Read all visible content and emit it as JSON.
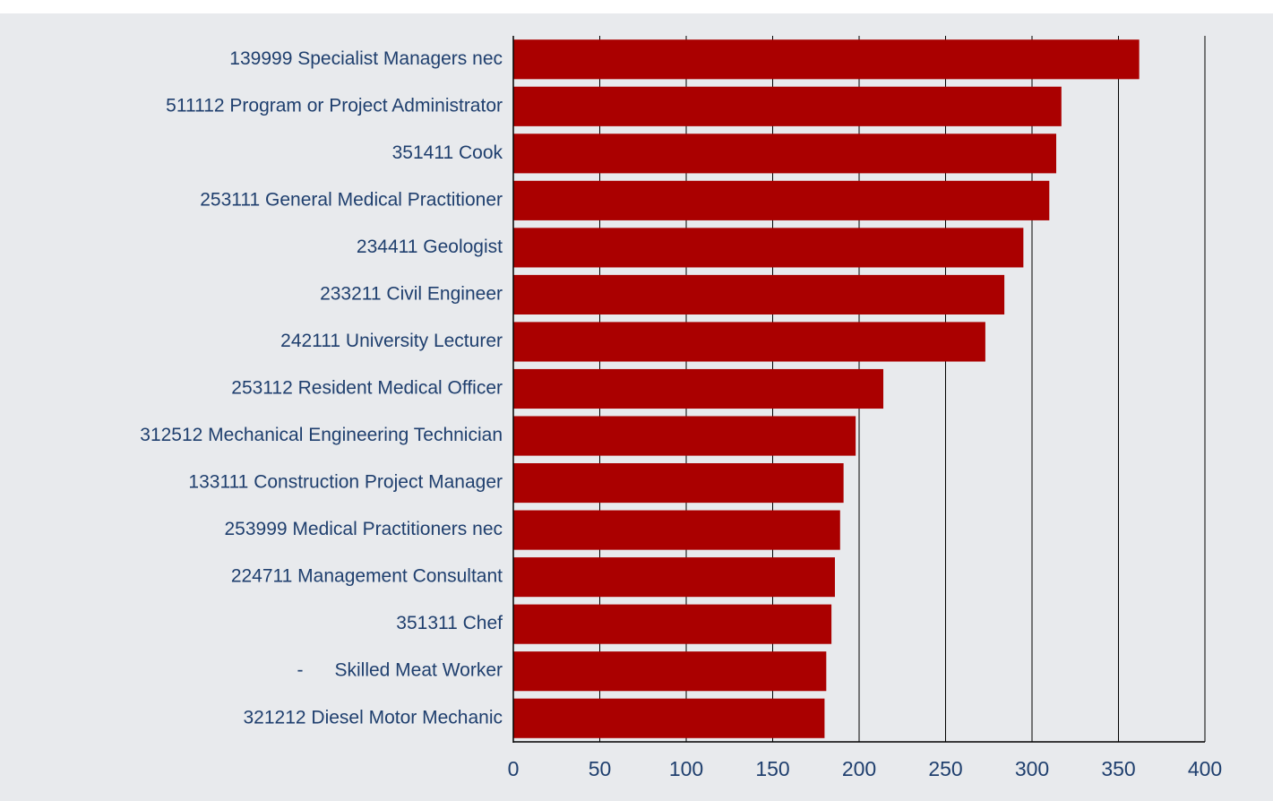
{
  "chart_data": {
    "type": "bar",
    "orientation": "horizontal",
    "categories": [
      "139999 Specialist Managers nec",
      "511112 Program or Project Administrator",
      "351411 Cook",
      "253111 General Medical Practitioner",
      "234411 Geologist",
      "233211 Civil Engineer",
      "242111 University Lecturer",
      "253112 Resident Medical Officer",
      "312512 Mechanical Engineering Technician",
      "133111 Construction Project Manager",
      "253999 Medical Practitioners nec",
      "224711 Management Consultant",
      "351311 Chef",
      "-      Skilled Meat Worker",
      "321212 Diesel Motor Mechanic"
    ],
    "values": [
      362,
      317,
      314,
      310,
      295,
      284,
      273,
      214,
      198,
      191,
      189,
      186,
      184,
      181,
      180
    ],
    "color": "#aa0000",
    "xlim": [
      0,
      400
    ],
    "xticks": [
      0,
      50,
      100,
      150,
      200,
      250,
      300,
      350,
      400
    ],
    "grid": true
  }
}
